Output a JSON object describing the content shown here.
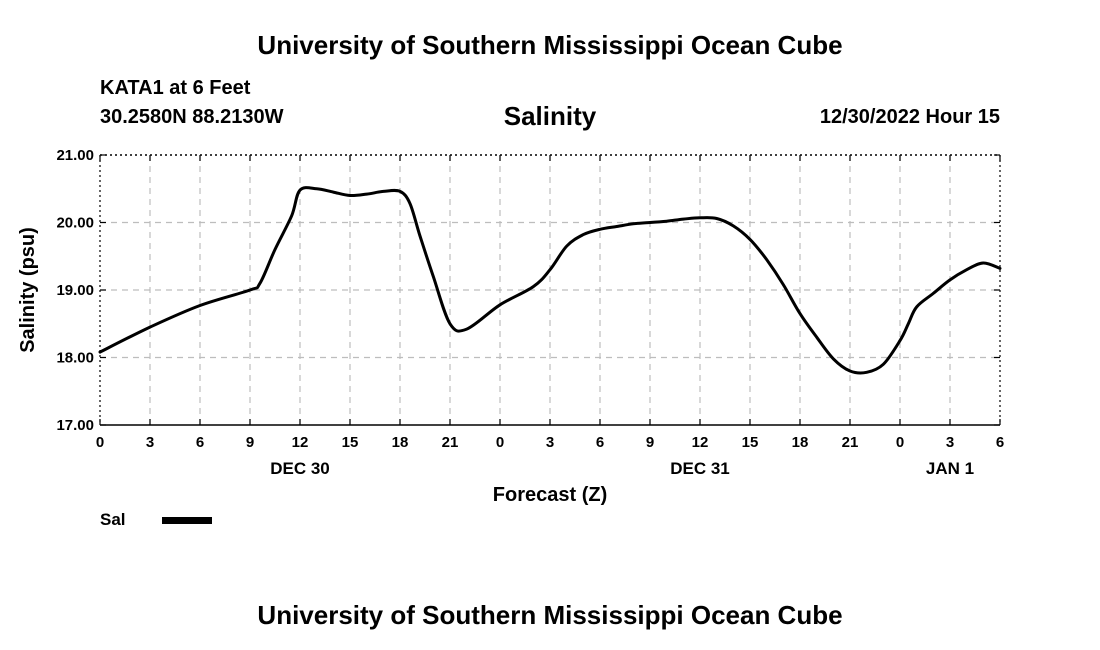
{
  "header": {
    "title": "University of Southern Mississippi Ocean Cube",
    "station": "KATA1 at 6 Feet",
    "coords": "30.2580N  88.2130W",
    "datetime": "12/30/2022 Hour 15"
  },
  "footer": {
    "title": "University of Southern Mississippi Ocean Cube"
  },
  "chart_data": {
    "type": "line",
    "title": "Salinity",
    "xlabel": "Forecast (Z)",
    "ylabel": "Salinity (psu)",
    "ylim": [
      17.0,
      21.0
    ],
    "yticks": [
      "17.00",
      "18.00",
      "19.00",
      "20.00",
      "21.00"
    ],
    "xlim": [
      0,
      54
    ],
    "xticks": [
      "0",
      "3",
      "6",
      "9",
      "12",
      "15",
      "18",
      "21",
      "0",
      "3",
      "6",
      "9",
      "12",
      "15",
      "18",
      "21",
      "0",
      "3",
      "6"
    ],
    "date_labels": [
      {
        "label": "DEC 30",
        "at_hour": 12
      },
      {
        "label": "DEC 31",
        "at_hour": 36
      },
      {
        "label": "JAN 1",
        "at_hour": 51
      }
    ],
    "grid": true,
    "legend": "bottom-left",
    "series": [
      {
        "name": "Sal",
        "color": "#000000",
        "x": [
          0,
          3,
          6,
          9,
          9.6,
          10.5,
          11.5,
          12,
          13,
          14,
          15,
          16,
          17,
          18,
          18.6,
          19.2,
          20,
          21,
          22,
          24,
          26,
          27,
          28,
          29,
          30,
          31,
          32,
          33,
          34,
          35,
          36,
          37,
          38,
          39,
          40,
          41,
          42,
          43,
          44,
          45,
          46,
          47,
          48,
          48.5,
          49,
          50,
          51,
          52,
          53,
          54
        ],
        "values": [
          18.08,
          18.45,
          18.77,
          19.0,
          19.1,
          19.6,
          20.1,
          20.48,
          20.5,
          20.45,
          20.4,
          20.42,
          20.46,
          20.46,
          20.28,
          19.8,
          19.2,
          18.5,
          18.42,
          18.78,
          19.05,
          19.3,
          19.65,
          19.82,
          19.9,
          19.94,
          19.98,
          20.0,
          20.02,
          20.05,
          20.07,
          20.06,
          19.95,
          19.75,
          19.45,
          19.08,
          18.65,
          18.3,
          17.98,
          17.8,
          17.78,
          17.9,
          18.25,
          18.5,
          18.75,
          18.95,
          19.15,
          19.3,
          19.4,
          19.32
        ]
      }
    ]
  }
}
